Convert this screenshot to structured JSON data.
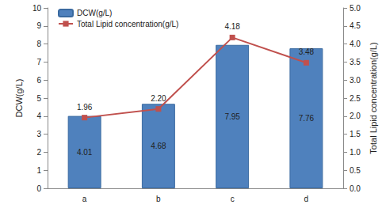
{
  "chart_data": {
    "type": "bar",
    "categories": [
      "a",
      "b",
      "c",
      "d"
    ],
    "series": [
      {
        "name": "DCW(g/L)",
        "type": "bar",
        "color": "#4f81bd",
        "values": [
          4.01,
          4.68,
          7.95,
          7.76
        ]
      },
      {
        "name": "Total Lipid concentration(g/L)",
        "type": "line",
        "axis": "y2",
        "color": "#c0504d",
        "marker": "square",
        "values": [
          1.96,
          2.2,
          4.18,
          3.48
        ],
        "value_labels": [
          "1.96",
          "2.20",
          "4.18",
          "3.48"
        ]
      }
    ],
    "ylabel": "DCW(g/L)",
    "y2label": "Total Lipid concentration(g/L)",
    "ylim": [
      0,
      10
    ],
    "yticks": [
      0,
      1,
      2,
      3,
      4,
      5,
      6,
      7,
      8,
      9,
      10
    ],
    "y2lim": [
      0,
      5
    ],
    "y2ticks": [
      {
        "value": 0,
        "label": "0.0"
      },
      0.5,
      {
        "value": 1,
        "label": "1.0"
      },
      1.5,
      {
        "value": 2,
        "label": "2.0"
      },
      2.5,
      {
        "value": 3,
        "label": "3.0"
      },
      3.5,
      {
        "value": 4,
        "label": "4.0"
      },
      4.5,
      {
        "value": 5,
        "label": "5.0"
      }
    ],
    "grid": false,
    "legend": "upper left",
    "data_labels": true
  }
}
